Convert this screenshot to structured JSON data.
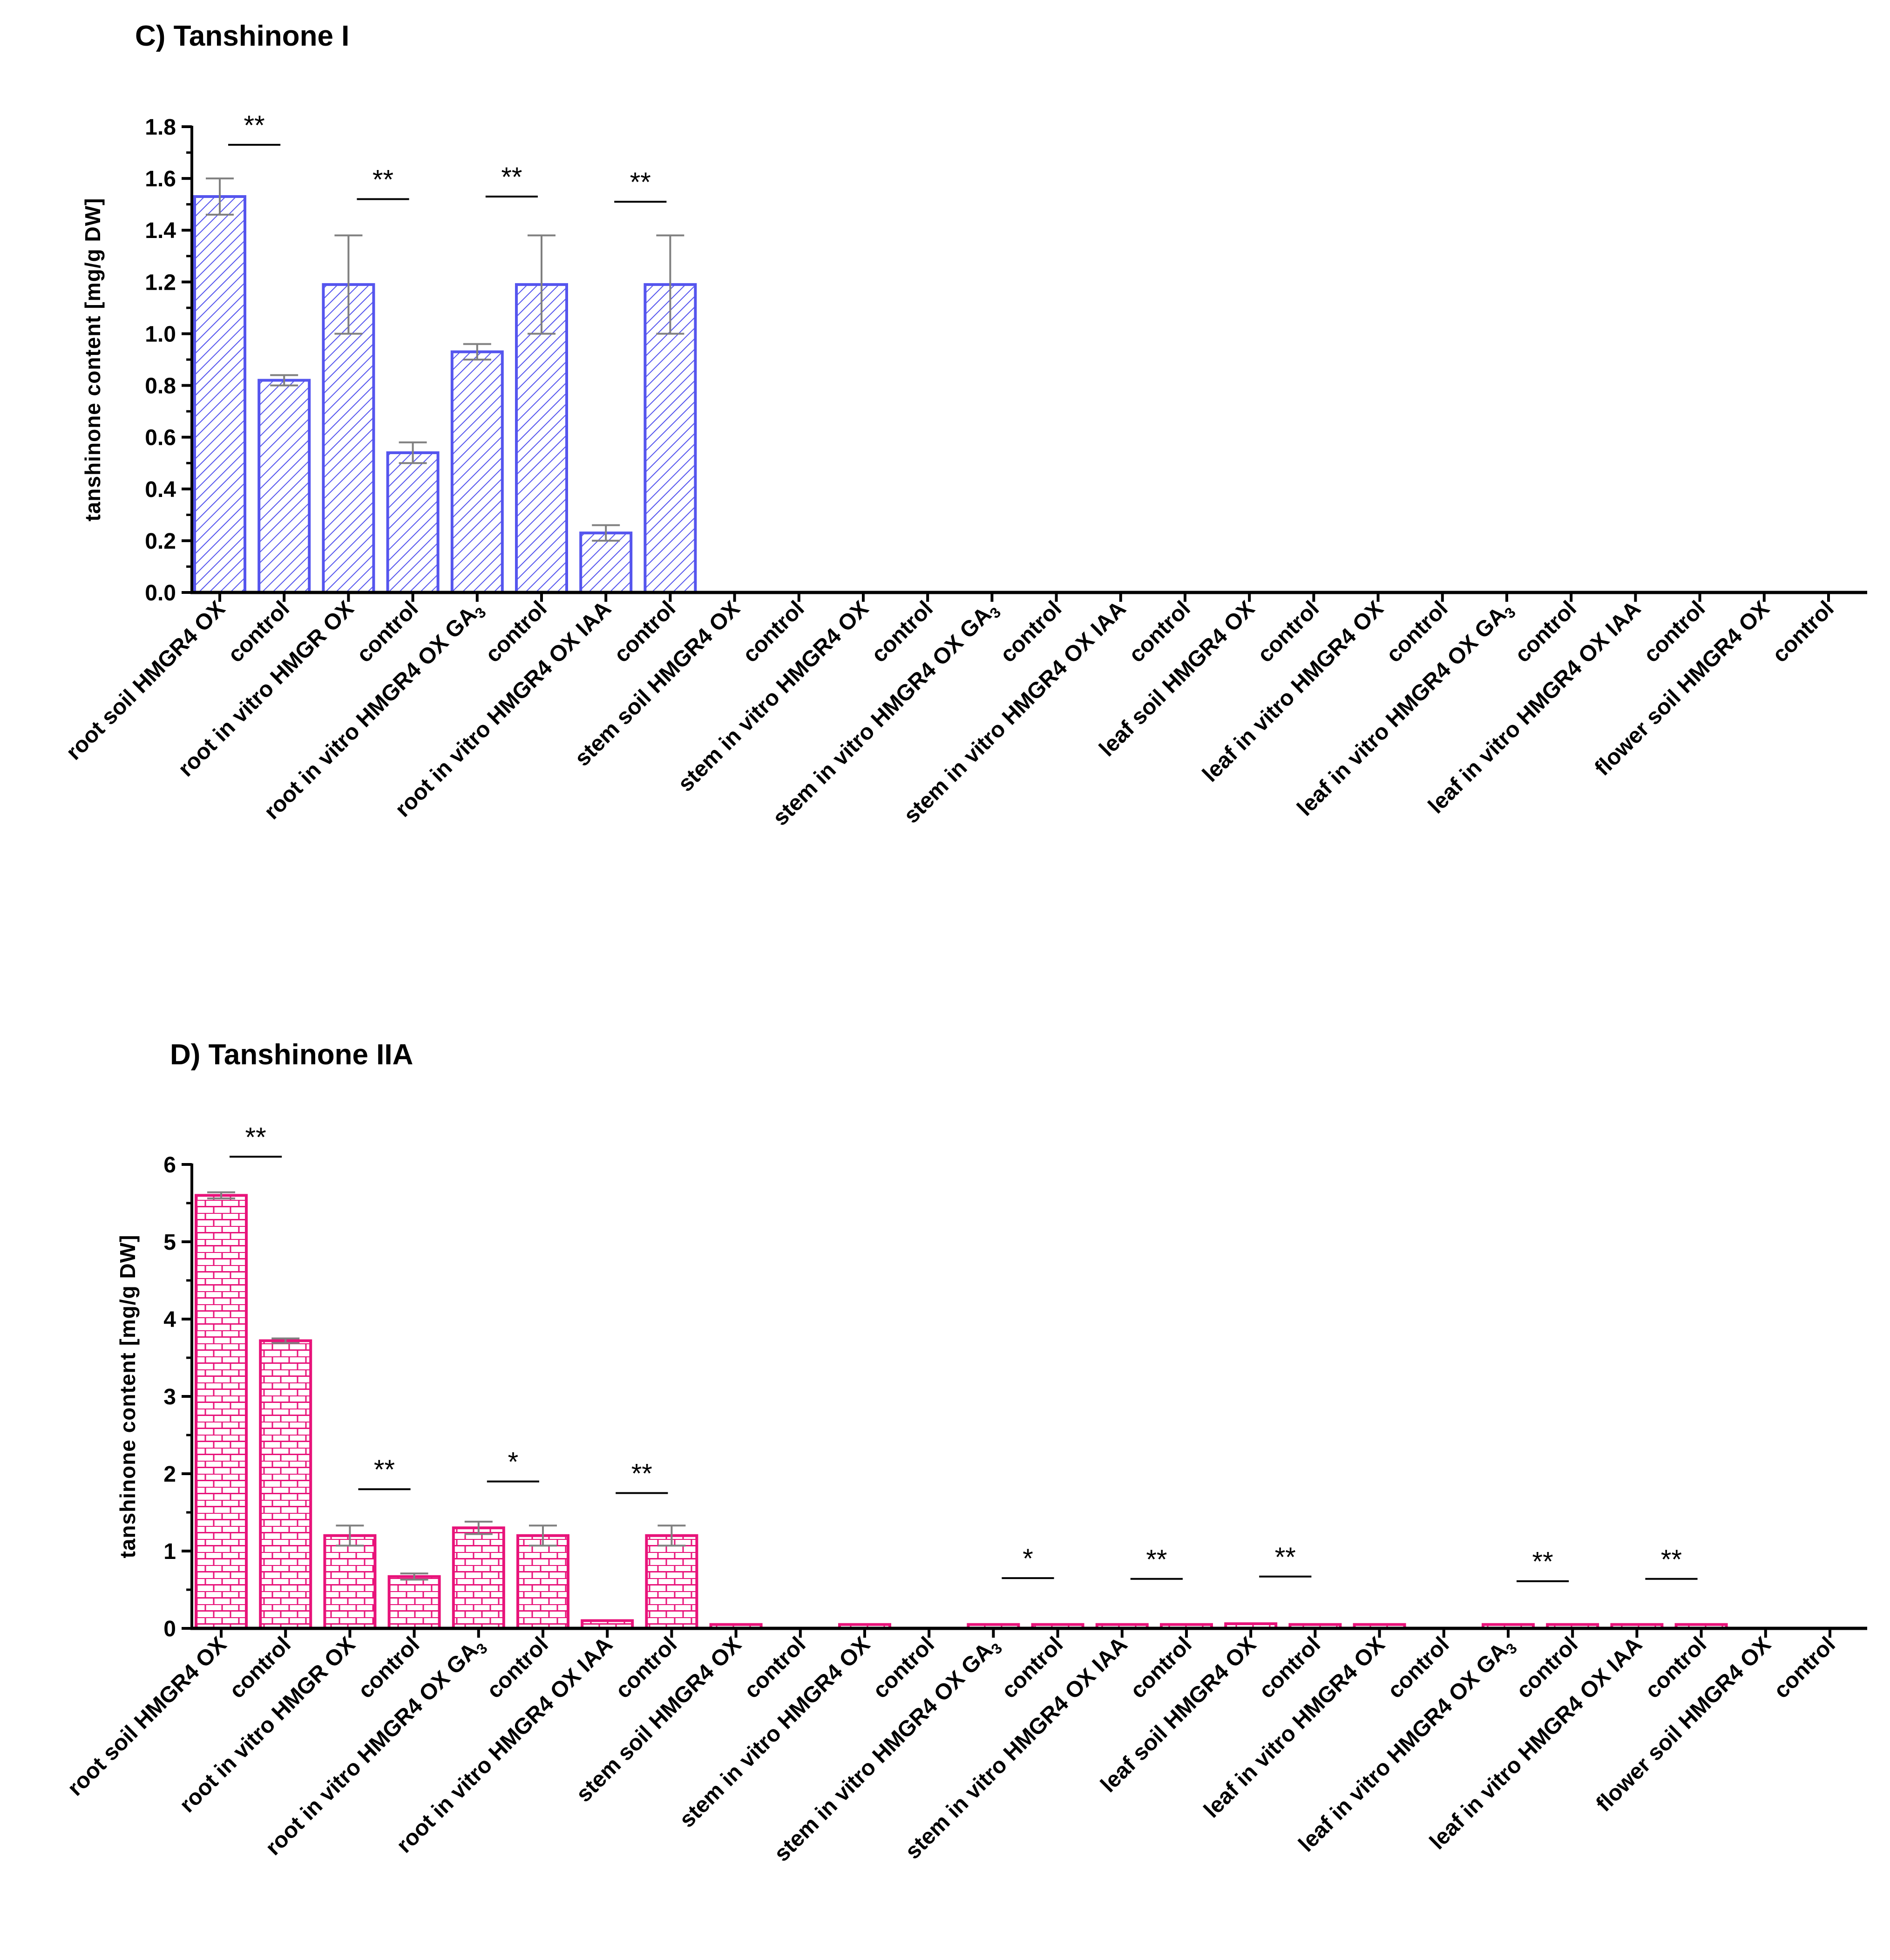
{
  "chart_data": [
    {
      "type": "bar",
      "title": "C) Tanshinone I",
      "xlabel": "",
      "ylabel": "tanshinone content [mg/g DW]",
      "ylim": [
        0,
        1.8
      ],
      "yticks": [
        "0.0",
        "0.2",
        "0.4",
        "0.6",
        "0.8",
        "1.0",
        "1.2",
        "1.4",
        "1.6",
        "1.8"
      ],
      "color": "#5555ee",
      "pattern": "diagonal-hatch",
      "categories": [
        "root soil HMGR4 OX",
        "control",
        "root in vitro HMGR OX",
        "control",
        "root in vitro HMGR4 OX GA3",
        "control",
        "root in vitro HMGR4 OX IAA",
        "control",
        "stem soil HMGR4 OX",
        "control",
        "stem in vitro HMGR4 OX",
        "control",
        "stem in vitro HMGR4 OX GA3",
        "control",
        "stem in vitro HMGR4 OX IAA",
        "control",
        "leaf soil HMGR4 OX",
        "control",
        "leaf in vitro HMGR4 OX",
        "control",
        "leaf in vitro HMGR4 OX GA3",
        "control",
        "leaf in vitro HMGR4 OX IAA",
        "control",
        "flower soil HMGR4 OX",
        "control"
      ],
      "values": [
        1.53,
        0.82,
        1.19,
        0.54,
        0.93,
        1.19,
        0.23,
        1.19,
        0,
        0,
        0,
        0,
        0,
        0,
        0,
        0,
        0,
        0,
        0,
        0,
        0,
        0,
        0,
        0,
        0,
        0
      ],
      "errors": [
        0.07,
        0.02,
        0.19,
        0.04,
        0.03,
        0.19,
        0.03,
        0.19,
        0,
        0,
        0,
        0,
        0,
        0,
        0,
        0,
        0,
        0,
        0,
        0,
        0,
        0,
        0,
        0,
        0,
        0
      ],
      "significance": [
        {
          "pair": [
            0,
            1
          ],
          "label": "**",
          "y": 1.73
        },
        {
          "pair": [
            2,
            3
          ],
          "label": "**",
          "y": 1.52
        },
        {
          "pair": [
            4,
            5
          ],
          "label": "**",
          "y": 1.53
        },
        {
          "pair": [
            6,
            7
          ],
          "label": "**",
          "y": 1.51
        }
      ]
    },
    {
      "type": "bar",
      "title": "D) Tanshinone IIA",
      "xlabel": "",
      "ylabel": "tanshinone content [mg/g DW]",
      "ylim": [
        0,
        6
      ],
      "yticks": [
        "0",
        "1",
        "2",
        "3",
        "4",
        "5",
        "6"
      ],
      "color": "#e8137a",
      "pattern": "brick",
      "categories": [
        "root soil HMGR4 OX",
        "control",
        "root in vitro HMGR OX",
        "control",
        "root in vitro HMGR4 OX GA3",
        "control",
        "root in vitro HMGR4 OX IAA",
        "control",
        "stem soil HMGR4 OX",
        "control",
        "stem in vitro HMGR4 OX",
        "control",
        "stem in vitro HMGR4 OX GA3",
        "control",
        "stem in vitro HMGR4 OX IAA",
        "control",
        "leaf soil HMGR4 OX",
        "control",
        "leaf in vitro HMGR4 OX",
        "control",
        "leaf in vitro HMGR4 OX GA3",
        "control",
        "leaf in vitro HMGR4 OX IAA",
        "control",
        "flower soil HMGR4 OX",
        "control"
      ],
      "values": [
        5.6,
        3.72,
        1.2,
        0.67,
        1.3,
        1.2,
        0.1,
        1.2,
        0.05,
        0,
        0.05,
        0,
        0.05,
        0.05,
        0.05,
        0.05,
        0.06,
        0.05,
        0.05,
        0,
        0.05,
        0.05,
        0.05,
        0.05,
        0,
        0
      ],
      "errors": [
        0.04,
        0.03,
        0.13,
        0.04,
        0.08,
        0.13,
        0,
        0.13,
        0,
        0,
        0,
        0,
        0,
        0,
        0,
        0,
        0,
        0,
        0,
        0,
        0,
        0,
        0,
        0,
        0,
        0
      ],
      "significance": [
        {
          "pair": [
            0,
            1
          ],
          "label": "**",
          "y": 6.1
        },
        {
          "pair": [
            2,
            3
          ],
          "label": "**",
          "y": 1.8
        },
        {
          "pair": [
            4,
            5
          ],
          "label": "*",
          "y": 1.9
        },
        {
          "pair": [
            6,
            7
          ],
          "label": "**",
          "y": 1.75
        },
        {
          "pair": [
            12,
            13
          ],
          "label": "*",
          "y": 0.65
        },
        {
          "pair": [
            14,
            15
          ],
          "label": "**",
          "y": 0.64
        },
        {
          "pair": [
            16,
            17
          ],
          "label": "**",
          "y": 0.67
        },
        {
          "pair": [
            20,
            21
          ],
          "label": "**",
          "y": 0.61
        },
        {
          "pair": [
            22,
            23
          ],
          "label": "**",
          "y": 0.64
        }
      ]
    }
  ]
}
